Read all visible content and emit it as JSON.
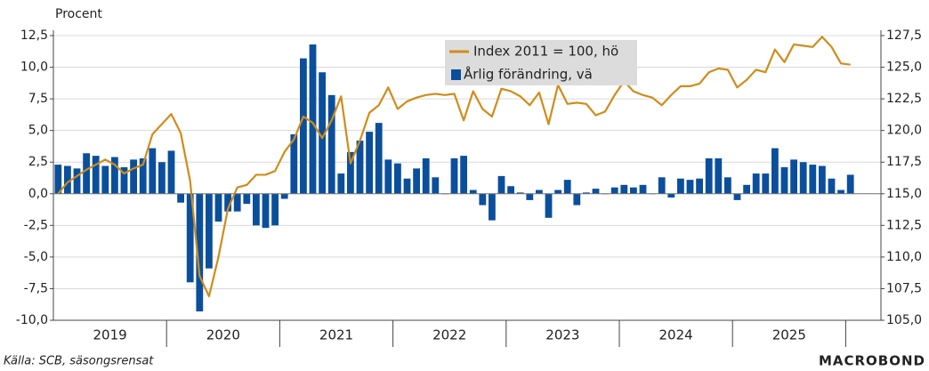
{
  "chart_data": {
    "type": "bar_line",
    "y_label": "Procent",
    "source": "Källa: SCB, säsongsrensat",
    "logo": "MACROBOND",
    "categories": [
      null,
      null,
      null,
      null,
      null,
      null,
      "2019",
      null,
      null,
      null,
      null,
      null,
      null,
      null,
      null,
      null,
      null,
      null,
      "2020",
      null,
      null,
      null,
      null,
      null,
      null,
      null,
      null,
      null,
      null,
      null,
      "2021",
      null,
      null,
      null,
      null,
      null,
      null,
      null,
      null,
      null,
      null,
      null,
      "2022",
      null,
      null,
      null,
      null,
      null,
      null,
      null,
      null,
      null,
      null,
      null,
      "2023",
      null,
      null,
      null,
      null,
      null,
      null,
      null,
      null,
      null,
      null,
      null,
      "2024",
      null,
      null,
      null,
      null,
      null,
      null,
      null,
      null,
      null,
      null,
      null,
      "2025",
      null,
      null,
      null,
      null,
      null,
      null
    ],
    "series": [
      {
        "name": "Index 2011 = 100, hö",
        "color": "#d08c1a",
        "axis": "y2",
        "kind": "line",
        "values": [
          115.0,
          115.9,
          116.4,
          116.9,
          117.3,
          117.7,
          117.3,
          116.6,
          117.0,
          117.3,
          119.7,
          120.5,
          121.3,
          119.8,
          116.0,
          108.5,
          106.9,
          110.0,
          113.8,
          115.5,
          115.7,
          116.5,
          116.5,
          116.8,
          118.3,
          119.3,
          121.1,
          120.6,
          119.4,
          120.8,
          122.7,
          117.4,
          119.2,
          121.4,
          122.0,
          123.4,
          121.7,
          122.3,
          122.6,
          122.8,
          122.9,
          122.8,
          122.9,
          120.8,
          123.1,
          121.7,
          121.1,
          123.3,
          123.1,
          122.7,
          122.0,
          123.0,
          120.5,
          123.6,
          122.1,
          122.2,
          122.1,
          121.2,
          121.5,
          122.8,
          123.9,
          123.1,
          122.8,
          122.6,
          122.0,
          122.8,
          123.5,
          123.5,
          123.7,
          124.6,
          124.9,
          124.8,
          123.4,
          124.0,
          124.8,
          124.6,
          126.4,
          125.4,
          126.8,
          126.7,
          126.6,
          127.4,
          126.6,
          125.3,
          125.2
        ]
      },
      {
        "name": "Årlig förändring, vä",
        "color": "#0b4f9c",
        "kind": "bar",
        "values": [
          2.3,
          2.2,
          2.0,
          3.2,
          3.0,
          2.2,
          2.9,
          2.1,
          2.7,
          2.8,
          3.6,
          2.5,
          3.4,
          -0.7,
          -7.0,
          -9.3,
          -5.9,
          -2.2,
          -1.4,
          -1.4,
          -0.8,
          -2.5,
          -2.7,
          -2.5,
          -0.4,
          4.7,
          10.7,
          11.8,
          9.6,
          7.8,
          1.6,
          3.3,
          4.2,
          4.9,
          5.6,
          2.7,
          2.4,
          1.2,
          2.0,
          2.8,
          1.3,
          0.0,
          2.8,
          3.0,
          0.3,
          -0.9,
          -2.1,
          1.4,
          0.6,
          0.1,
          -0.5,
          0.3,
          -1.9,
          0.3,
          1.1,
          -0.9,
          0.1,
          0.4,
          0.0,
          0.5,
          0.7,
          0.5,
          0.7,
          0.0,
          1.3,
          -0.3,
          1.2,
          1.1,
          1.2,
          2.8,
          2.8,
          1.3,
          -0.5,
          0.7,
          1.6,
          1.6,
          3.6,
          2.1,
          2.7,
          2.5,
          2.3,
          2.2,
          1.2,
          0.3,
          1.5
        ]
      }
    ],
    "ylim": [
      -10,
      12.5
    ],
    "yticks": [
      {
        "value": 12.5,
        "label": "12,5"
      },
      {
        "value": 10,
        "label": "10,0"
      },
      {
        "value": 7.5,
        "label": "7,5"
      },
      {
        "value": 5,
        "label": "5,0"
      },
      {
        "value": 2.5,
        "label": "2,5"
      },
      {
        "value": 0,
        "label": "0,0"
      },
      {
        "value": -2.5,
        "label": "-2,5"
      },
      {
        "value": -5,
        "label": "-5,0"
      },
      {
        "value": -7.5,
        "label": "-7,5"
      },
      {
        "value": -10,
        "label": "-10,0"
      }
    ],
    "y2lim": [
      105,
      127.5
    ],
    "y2ticks": [
      {
        "value": 127.5,
        "label": "127,5"
      },
      {
        "value": 125,
        "label": "125,0"
      },
      {
        "value": 122.5,
        "label": "122,5"
      },
      {
        "value": 120,
        "label": "120,0"
      },
      {
        "value": 117.5,
        "label": "117,5"
      },
      {
        "value": 115,
        "label": "115,0"
      },
      {
        "value": 112.5,
        "label": "112,5"
      },
      {
        "value": 110,
        "label": "110,0"
      },
      {
        "value": 107.5,
        "label": "107,5"
      },
      {
        "value": 105,
        "label": "105,0"
      }
    ],
    "grid": true
  }
}
